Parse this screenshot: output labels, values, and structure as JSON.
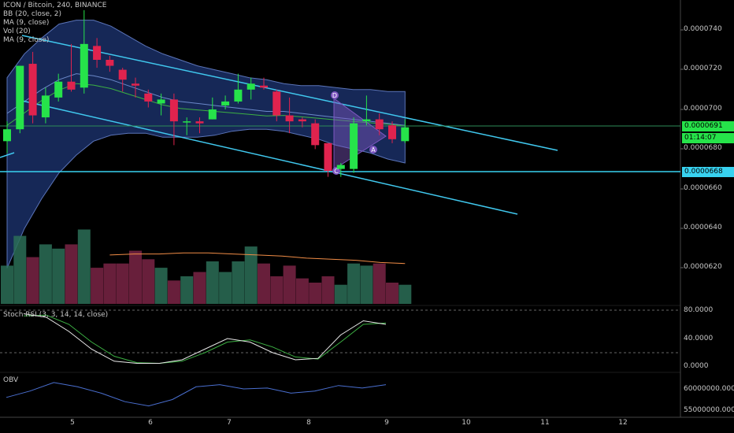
{
  "legend": {
    "symbol": "ICON / Bitcoin, 240, BINANCE",
    "indicators": [
      "BB (20, close, 2)",
      "MA (9, close)",
      "Vol (20)",
      "MA (9, close)"
    ]
  },
  "price_axis": {
    "labels": [
      "0.0000740",
      "0.0000720",
      "0.0000700",
      "0.0000680",
      "0.0000660",
      "0.0000640",
      "0.0000620"
    ],
    "current_price": "0.0000691",
    "countdown": "01:14:07",
    "support_level": "0.0000668"
  },
  "stoch": {
    "title": "Stoch RSI (3, 3, 14, 14, close)",
    "labels": [
      "80.0000",
      "40.0000",
      "0.0000"
    ]
  },
  "obv": {
    "title": "OBV",
    "labels": [
      "60000000.0000",
      "55000000.0000"
    ]
  },
  "time_axis": {
    "labels": [
      "5",
      "6",
      "7",
      "8",
      "9",
      "10",
      "11",
      "12"
    ]
  },
  "pattern_labels": {
    "d": "D",
    "c": "C",
    "a": "A"
  },
  "colors": {
    "background": "#000000",
    "up": "#26e34a",
    "down": "#e0234e",
    "band_fill": "#1a2f66",
    "trendline": "#40c8ee",
    "support": "#38d2f0",
    "ma_price": "#3cb043",
    "ma_volume": "#f08c46",
    "pattern": "#7e57c2"
  },
  "chart_data": {
    "type": "candlestick",
    "y_range": [
      6e-05,
      7.52e-05
    ],
    "candles": [
      {
        "o": 68.4,
        "h": 69.4,
        "l": 67.8,
        "c": 69.0
      },
      {
        "o": 69.0,
        "h": 72.2,
        "l": 68.8,
        "c": 72.2
      },
      {
        "o": 72.3,
        "h": 72.9,
        "l": 69.3,
        "c": 69.7
      },
      {
        "o": 69.6,
        "h": 71.1,
        "l": 69.3,
        "c": 70.7
      },
      {
        "o": 70.6,
        "h": 71.8,
        "l": 70.4,
        "c": 71.4
      },
      {
        "o": 71.4,
        "h": 73.3,
        "l": 70.9,
        "c": 71.0
      },
      {
        "o": 71.1,
        "h": 75.0,
        "l": 70.8,
        "c": 73.3
      },
      {
        "o": 73.2,
        "h": 73.6,
        "l": 72.1,
        "c": 72.5
      },
      {
        "o": 72.5,
        "h": 72.7,
        "l": 71.9,
        "c": 72.2
      },
      {
        "o": 72.0,
        "h": 72.1,
        "l": 70.9,
        "c": 71.5
      },
      {
        "o": 71.3,
        "h": 71.6,
        "l": 70.6,
        "c": 71.2
      },
      {
        "o": 70.8,
        "h": 71.0,
        "l": 70.1,
        "c": 70.4
      },
      {
        "o": 70.3,
        "h": 70.8,
        "l": 69.7,
        "c": 70.5
      },
      {
        "o": 70.5,
        "h": 70.8,
        "l": 68.2,
        "c": 69.4
      },
      {
        "o": 69.4,
        "h": 69.6,
        "l": 68.7,
        "c": 69.4
      },
      {
        "o": 69.4,
        "h": 69.6,
        "l": 68.8,
        "c": 69.3
      },
      {
        "o": 69.5,
        "h": 70.6,
        "l": 69.5,
        "c": 70.0
      },
      {
        "o": 70.2,
        "h": 70.7,
        "l": 70.0,
        "c": 70.4
      },
      {
        "o": 70.4,
        "h": 71.8,
        "l": 70.3,
        "c": 71.0
      },
      {
        "o": 71.0,
        "h": 71.6,
        "l": 70.5,
        "c": 71.3
      },
      {
        "o": 71.2,
        "h": 71.6,
        "l": 71.0,
        "c": 71.1
      },
      {
        "o": 70.9,
        "h": 71.0,
        "l": 69.4,
        "c": 69.7
      },
      {
        "o": 69.7,
        "h": 70.6,
        "l": 68.8,
        "c": 69.4
      },
      {
        "o": 69.5,
        "h": 69.6,
        "l": 69.1,
        "c": 69.4
      },
      {
        "o": 69.3,
        "h": 69.5,
        "l": 68.0,
        "c": 68.2
      },
      {
        "o": 68.3,
        "h": 68.3,
        "l": 66.6,
        "c": 66.9
      },
      {
        "o": 67.0,
        "h": 67.3,
        "l": 66.6,
        "c": 67.2
      },
      {
        "o": 67.0,
        "h": 69.6,
        "l": 66.8,
        "c": 69.3
      },
      {
        "o": 69.4,
        "h": 70.7,
        "l": 69.2,
        "c": 69.5
      },
      {
        "o": 69.5,
        "h": 69.8,
        "l": 68.7,
        "c": 69.0
      },
      {
        "o": 69.2,
        "h": 69.4,
        "l": 68.3,
        "c": 68.5
      },
      {
        "o": 68.4,
        "h": 69.5,
        "l": 68.3,
        "c": 69.1
      }
    ],
    "volume": [
      3.6,
      6.4,
      4.4,
      5.6,
      5.2,
      5.6,
      7.0,
      3.4,
      3.8,
      3.8,
      5.0,
      4.2,
      3.4,
      2.2,
      2.6,
      3.0,
      4.0,
      3.0,
      4.0,
      5.4,
      3.8,
      2.6,
      3.6,
      2.4,
      2.0,
      2.6,
      1.8,
      3.8,
      3.6,
      3.8,
      2.0,
      1.8
    ],
    "volume_ma": [
      4.6,
      4.7,
      4.7,
      4.8,
      4.8,
      4.7,
      4.6,
      4.5,
      4.3,
      4.2,
      4.1,
      3.9,
      3.8
    ],
    "bb_upper": [
      71.6,
      72.8,
      73.6,
      74.3,
      74.5,
      74.5,
      74.2,
      73.7,
      73.2,
      72.8,
      72.5,
      72.2,
      72.0,
      71.8,
      71.6,
      71.5,
      71.3,
      71.2,
      71.2,
      71.1,
      71.0,
      71.0,
      70.9,
      70.9
    ],
    "bb_mid": [
      69.8,
      70.4,
      71.0,
      71.5,
      71.8,
      71.7,
      71.5,
      71.2,
      70.9,
      70.6,
      70.4,
      70.3,
      70.2,
      70.1,
      70.0,
      69.9,
      69.9,
      69.8,
      69.7,
      69.6,
      69.5,
      69.4,
      69.3,
      69.2
    ],
    "bb_lower": [
      62.0,
      64.0,
      65.5,
      66.8,
      67.7,
      68.4,
      68.7,
      68.8,
      68.8,
      68.6,
      68.6,
      68.6,
      68.7,
      68.9,
      69.0,
      69.0,
      68.9,
      68.7,
      68.5,
      68.2,
      68.0,
      67.8,
      67.5,
      67.3
    ],
    "stoch_k": [
      75,
      70,
      50,
      25,
      8,
      5,
      5,
      10,
      25,
      40,
      35,
      20,
      10,
      12,
      45,
      65,
      60
    ],
    "stoch_d": [
      72,
      73,
      60,
      35,
      15,
      6,
      5,
      8,
      20,
      35,
      38,
      28,
      14,
      11,
      35,
      60,
      62
    ],
    "obv": [
      58.0,
      59.5,
      61.5,
      60.5,
      59.0,
      57.0,
      56.0,
      57.5,
      60.5,
      61.0,
      60.0,
      60.2,
      59.0,
      59.5,
      60.8,
      60.2,
      61.0
    ]
  }
}
